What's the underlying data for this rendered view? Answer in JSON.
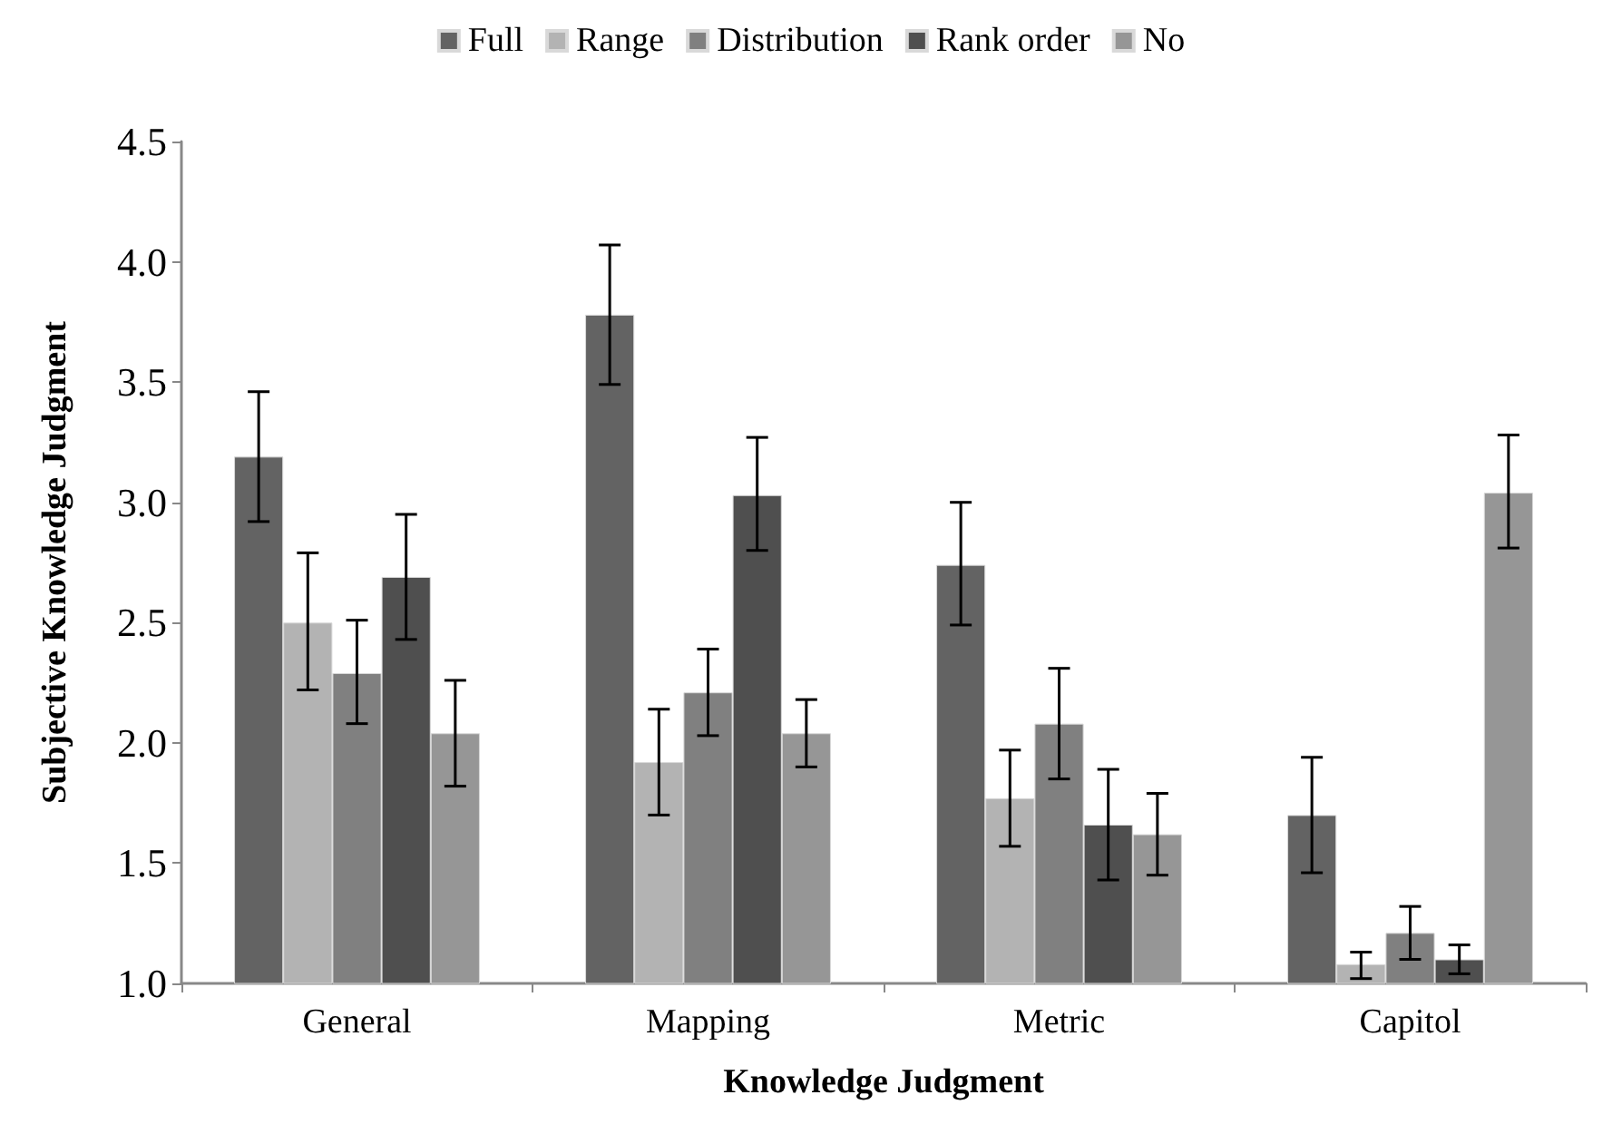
{
  "chart_data": {
    "type": "bar",
    "xlabel": "Knowledge Judgment",
    "ylabel": "Subjective Knowledge Judgment",
    "categories": [
      "General",
      "Mapping",
      "Metric",
      "Capitol"
    ],
    "series": [
      {
        "name": "Full",
        "color": "#636363",
        "values": [
          3.19,
          3.78,
          2.74,
          1.7
        ],
        "errors": [
          [
            2.92,
            3.46
          ],
          [
            3.49,
            4.07
          ],
          [
            2.49,
            3.0
          ],
          [
            1.46,
            1.94
          ]
        ]
      },
      {
        "name": "Range",
        "color": "#b3b3b3",
        "values": [
          2.5,
          1.92,
          1.77,
          1.08
        ],
        "errors": [
          [
            2.22,
            2.79
          ],
          [
            1.7,
            2.14
          ],
          [
            1.57,
            1.97
          ],
          [
            1.02,
            1.13
          ]
        ]
      },
      {
        "name": "Distribution",
        "color": "#808080",
        "values": [
          2.29,
          2.21,
          2.08,
          1.21
        ],
        "errors": [
          [
            2.08,
            2.51
          ],
          [
            2.03,
            2.39
          ],
          [
            1.85,
            2.31
          ],
          [
            1.1,
            1.32
          ]
        ]
      },
      {
        "name": "Rank order",
        "color": "#4f4f4f",
        "values": [
          2.69,
          3.03,
          1.66,
          1.1
        ],
        "errors": [
          [
            2.43,
            2.95
          ],
          [
            2.8,
            3.27
          ],
          [
            1.43,
            1.89
          ],
          [
            1.04,
            1.16
          ]
        ]
      },
      {
        "name": "No",
        "color": "#969696",
        "values": [
          2.04,
          2.04,
          1.62,
          3.04
        ],
        "errors": [
          [
            1.82,
            2.26
          ],
          [
            1.9,
            2.18
          ],
          [
            1.45,
            1.79
          ],
          [
            2.81,
            3.28
          ]
        ]
      }
    ],
    "ylim": [
      1.0,
      4.5
    ],
    "yticks": [
      {
        "value": 1.0,
        "label": "1.0"
      },
      {
        "value": 1.5,
        "label": "1.5"
      },
      {
        "value": 2.0,
        "label": "2.0"
      },
      {
        "value": 2.5,
        "label": "2.5"
      },
      {
        "value": 3.0,
        "label": "3.0"
      },
      {
        "value": 3.5,
        "label": "3.5"
      },
      {
        "value": 4.0,
        "label": "4.0"
      },
      {
        "value": 4.5,
        "label": "4.5"
      }
    ],
    "grid": false,
    "legend": "top"
  }
}
